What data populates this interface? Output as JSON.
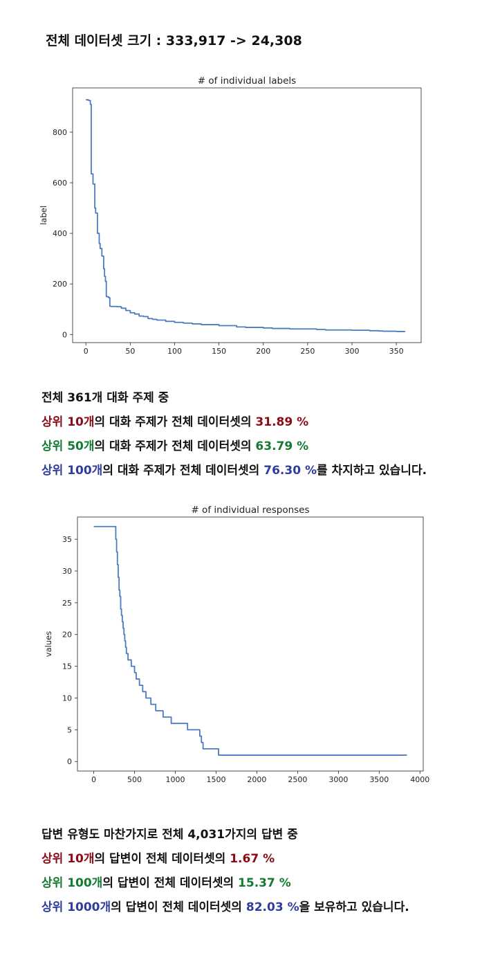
{
  "heading": {
    "text": "전체 데이터셋 크기 : 333,917 -> 24,308"
  },
  "chart_data": [
    {
      "type": "line",
      "title": "# of individual labels",
      "xlabel": "",
      "ylabel": "label",
      "xlim": [
        -15,
        378
      ],
      "ylim": [
        -32,
        975
      ],
      "xticks": [
        0,
        50,
        100,
        150,
        200,
        250,
        300,
        350
      ],
      "yticks": [
        0,
        200,
        400,
        600,
        800
      ],
      "grid": false,
      "color": "#4c7bbf",
      "x": [
        0,
        3,
        5,
        6,
        8,
        10,
        11,
        13,
        15,
        16,
        18,
        20,
        21,
        22,
        23,
        25,
        26,
        27,
        28,
        29,
        30,
        35,
        40,
        45,
        50,
        55,
        60,
        65,
        70,
        75,
        80,
        90,
        100,
        110,
        120,
        130,
        150,
        170,
        180,
        200,
        210,
        230,
        260,
        270,
        300,
        320,
        330,
        335,
        350,
        360
      ],
      "y": [
        928,
        925,
        910,
        635,
        595,
        500,
        480,
        400,
        360,
        340,
        310,
        260,
        230,
        210,
        150,
        148,
        145,
        112,
        111,
        111,
        111,
        110,
        104,
        95,
        86,
        81,
        73,
        71,
        63,
        60,
        57,
        52,
        48,
        45,
        42,
        39,
        35,
        30,
        28,
        26,
        24,
        22,
        20,
        18,
        17,
        15,
        14,
        13,
        12,
        12
      ]
    },
    {
      "type": "line",
      "title": "# of individual responses",
      "xlabel": "",
      "ylabel": "values",
      "xlim": [
        -200,
        4040
      ],
      "ylim": [
        -1.5,
        38.5
      ],
      "xticks": [
        0,
        500,
        1000,
        1500,
        2000,
        2500,
        3000,
        3500,
        4000
      ],
      "yticks": [
        0,
        5,
        10,
        15,
        20,
        25,
        30,
        35
      ],
      "grid": false,
      "color": "#4c7bbf",
      "x": [
        0,
        260,
        270,
        280,
        290,
        300,
        310,
        320,
        330,
        340,
        350,
        360,
        370,
        380,
        390,
        400,
        420,
        440,
        460,
        480,
        500,
        520,
        540,
        560,
        580,
        600,
        620,
        640,
        660,
        680,
        700,
        730,
        760,
        800,
        850,
        900,
        950,
        1000,
        1050,
        1100,
        1150,
        1200,
        1250,
        1280,
        1300,
        1320,
        1340,
        1400,
        1500,
        1530,
        1600,
        2000,
        2500,
        3000,
        3500,
        3840
      ],
      "y": [
        37,
        37,
        35,
        33,
        31,
        29,
        27,
        26,
        24,
        23,
        22,
        21,
        20,
        19,
        18,
        17,
        16,
        16,
        15,
        15,
        14,
        13,
        13,
        12,
        12,
        11,
        11,
        10,
        10,
        10,
        9,
        9,
        8,
        8,
        7,
        7,
        6,
        6,
        6,
        6,
        5,
        5,
        5,
        5,
        4,
        3,
        2,
        2,
        2,
        1,
        1,
        1,
        1,
        1,
        1,
        1
      ]
    }
  ],
  "stats1": {
    "l1": "전체 361개 대화 주제 중",
    "l2a": "상위 10개",
    "l2b": "의 대화 주제가 전체 데이터셋의 ",
    "l2c": "31.89 %",
    "l3a": "상위 50개",
    "l3b": "의 대화 주제가 전체 데이터셋의 ",
    "l3c": "63.79 %",
    "l4a": "상위 100개",
    "l4b": "의 대화 주제가 전체 데이터셋의 ",
    "l4c": "76.30 %",
    "l4d": "를 차지하고 있습니다."
  },
  "stats2": {
    "l1": "답변 유형도 마찬가지로 전체 4,031가지의 답변 중",
    "l2a": "상위 10개",
    "l2b": "의 답변이 전체 데이터셋의 ",
    "l2c": "1.67 %",
    "l3a": "상위 100개",
    "l3b": "의 답변이 전체 데이터셋의 ",
    "l3c": "15.37 %",
    "l4a": "상위 1000개",
    "l4b": "의 답변이 전체 데이터셋의 ",
    "l4c": "82.03 %",
    "l4d": "을 보유하고 있습니다."
  }
}
